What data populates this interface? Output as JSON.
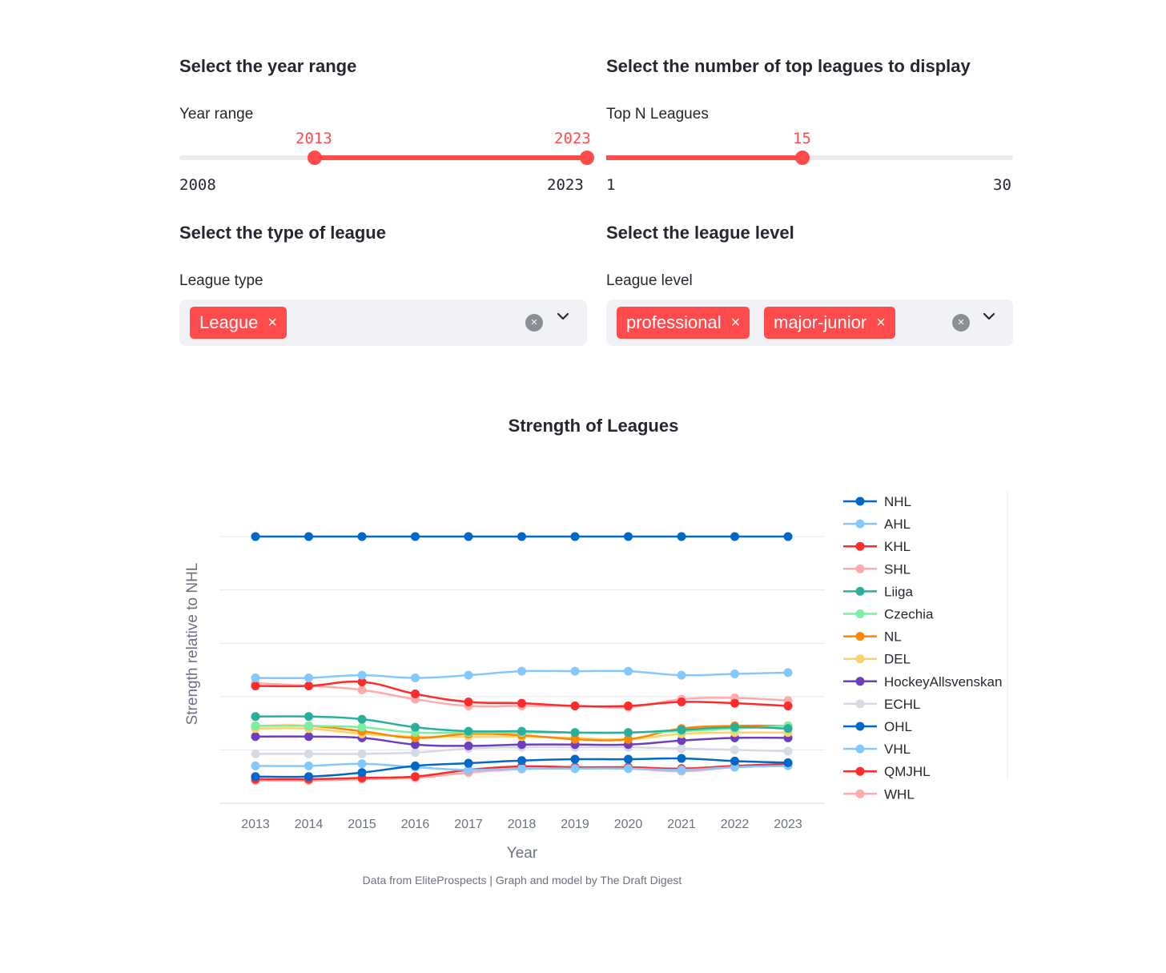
{
  "filters": {
    "year": {
      "heading": "Select the year range",
      "label": "Year range",
      "min_label": "2008",
      "max_label": "2023",
      "min": 2008,
      "max": 2023,
      "low": 2013,
      "high": 2023,
      "low_label": "2013",
      "high_label": "2023"
    },
    "topn": {
      "heading": "Select the number of top leagues to display",
      "label": "Top N Leagues",
      "min_label": "1",
      "max_label": "30",
      "min": 1,
      "max": 30,
      "value": 15,
      "value_label": "15"
    },
    "league_type": {
      "heading": "Select the type of league",
      "label": "League type",
      "chips": [
        "League"
      ]
    },
    "league_level": {
      "heading": "Select the league level",
      "label": "League level",
      "chips": [
        "professional",
        "major-junior"
      ]
    },
    "chip_remove_glyph": "×",
    "clear_glyph": "×",
    "chevron_glyph": "⌄"
  },
  "chart": {
    "footer": "Data from EliteProspects | Graph and model by The Draft Digest"
  },
  "colors": {
    "accent": "#ff4b4b",
    "track": "#e9ebef",
    "select_bg": "#f0f2f6"
  },
  "chart_data": {
    "type": "line",
    "title": "Strength of Leagues",
    "xlabel": "Year",
    "ylabel": "Strength relative to NHL",
    "x": [
      "2013",
      "2014",
      "2015",
      "2016",
      "2017",
      "2018",
      "2019",
      "2020",
      "2021",
      "2022",
      "2023"
    ],
    "ylim": [
      0,
      1.05
    ],
    "y_ticks": [
      0,
      0.2,
      0.4,
      0.6,
      0.8,
      1.0
    ],
    "y_tick_labels_shown": false,
    "grid": true,
    "legend_position": "right",
    "series": [
      {
        "name": "NHL",
        "color": "#0068c9",
        "values": [
          1,
          1,
          1,
          1,
          1,
          1,
          1,
          1,
          1,
          1,
          1
        ]
      },
      {
        "name": "AHL",
        "color": "#83c9ff",
        "values": [
          0.47,
          0.47,
          0.48,
          0.47,
          0.48,
          0.495,
          0.495,
          0.495,
          0.48,
          0.485,
          0.49
        ]
      },
      {
        "name": "KHL",
        "color": "#ff2b2b",
        "values": [
          0.44,
          0.44,
          0.455,
          0.41,
          0.38,
          0.375,
          0.365,
          0.365,
          0.38,
          0.375,
          0.365
        ]
      },
      {
        "name": "SHL",
        "color": "#ffabab",
        "values": [
          0.45,
          0.44,
          0.425,
          0.39,
          0.365,
          0.365,
          0.365,
          0.36,
          0.39,
          0.395,
          0.385
        ]
      },
      {
        "name": "Liiga",
        "color": "#29b09d",
        "values": [
          0.325,
          0.325,
          0.315,
          0.285,
          0.27,
          0.27,
          0.265,
          0.265,
          0.275,
          0.285,
          0.28
        ]
      },
      {
        "name": "Czechia",
        "color": "#7defa1",
        "values": [
          0.29,
          0.29,
          0.285,
          0.265,
          0.265,
          0.265,
          0.265,
          0.265,
          0.27,
          0.28,
          0.29
        ]
      },
      {
        "name": "NL",
        "color": "#ff8700",
        "values": [
          0.29,
          0.29,
          0.27,
          0.245,
          0.26,
          0.255,
          0.24,
          0.24,
          0.28,
          0.29,
          0.29
        ]
      },
      {
        "name": "DEL",
        "color": "#ffd16a",
        "values": [
          0.28,
          0.28,
          0.26,
          0.25,
          0.25,
          0.25,
          0.245,
          0.24,
          0.26,
          0.265,
          0.265
        ]
      },
      {
        "name": "HockeyAllsvenskan",
        "color": "#6d3fc0",
        "values": [
          0.25,
          0.25,
          0.245,
          0.22,
          0.215,
          0.22,
          0.22,
          0.22,
          0.235,
          0.245,
          0.245
        ]
      },
      {
        "name": "ECHL",
        "color": "#d5dae5",
        "values": [
          0.185,
          0.185,
          0.185,
          0.19,
          0.205,
          0.21,
          0.21,
          0.21,
          0.205,
          0.2,
          0.195
        ]
      },
      {
        "name": "OHL",
        "color": "#0068c9",
        "values": [
          0.1,
          0.1,
          0.115,
          0.14,
          0.15,
          0.16,
          0.165,
          0.165,
          0.168,
          0.158,
          0.152
        ]
      },
      {
        "name": "VHL",
        "color": "#83c9ff",
        "values": [
          0.14,
          0.14,
          0.148,
          0.135,
          0.125,
          0.13,
          0.13,
          0.13,
          0.125,
          0.135,
          0.14
        ]
      },
      {
        "name": "QMJHL",
        "color": "#ff2b2b",
        "values": [
          0.09,
          0.09,
          0.095,
          0.1,
          0.125,
          0.138,
          0.135,
          0.135,
          0.13,
          0.14,
          0.148
        ]
      },
      {
        "name": "WHL",
        "color": "#ffabab",
        "values": [
          0.085,
          0.085,
          0.09,
          0.095,
          0.115,
          0.128,
          0.13,
          0.13,
          0.12,
          0.135,
          0.145
        ]
      }
    ]
  }
}
